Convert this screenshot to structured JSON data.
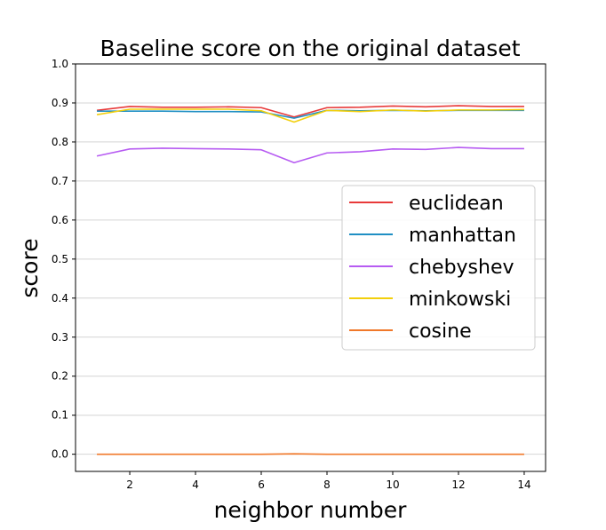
{
  "chart_data": {
    "type": "line",
    "title": "Baseline score on the original dataset",
    "xlabel": "neighbor number",
    "ylabel": "score",
    "xlim": [
      0.35,
      14.65
    ],
    "ylim": [
      -0.044,
      1.0
    ],
    "x_ticks": [
      2,
      4,
      6,
      8,
      10,
      12,
      14
    ],
    "x_tick_labels": [
      "2",
      "4",
      "6",
      "8",
      "10",
      "12",
      "14"
    ],
    "y_ticks": [
      0.0,
      0.1,
      0.2,
      0.3,
      0.4,
      0.5,
      0.6,
      0.7,
      0.8,
      0.9,
      1.0
    ],
    "y_tick_labels": [
      "0.0",
      "0.1",
      "0.2",
      "0.3",
      "0.4",
      "0.5",
      "0.6",
      "0.7",
      "0.8",
      "0.9",
      "1.0"
    ],
    "grid": "horizontal",
    "legend_position": "center-right",
    "x": [
      1,
      2,
      3,
      4,
      5,
      6,
      7,
      8,
      9,
      10,
      11,
      12,
      13,
      14
    ],
    "series": [
      {
        "name": "euclidean",
        "color": "#e83a3a",
        "values": [
          0.881,
          0.891,
          0.889,
          0.889,
          0.89,
          0.888,
          0.864,
          0.888,
          0.889,
          0.892,
          0.89,
          0.893,
          0.891,
          0.891
        ]
      },
      {
        "name": "manhattan",
        "color": "#1f8fc4",
        "values": [
          0.879,
          0.879,
          0.879,
          0.878,
          0.878,
          0.877,
          0.861,
          0.881,
          0.88,
          0.881,
          0.88,
          0.881,
          0.881,
          0.881
        ]
      },
      {
        "name": "chebyshev",
        "color": "#b75cf2",
        "values": [
          0.764,
          0.782,
          0.784,
          0.783,
          0.782,
          0.78,
          0.747,
          0.772,
          0.775,
          0.782,
          0.781,
          0.786,
          0.783,
          0.783
        ]
      },
      {
        "name": "minkowski",
        "color": "#f2cf0c",
        "values": [
          0.87,
          0.884,
          0.884,
          0.884,
          0.884,
          0.88,
          0.851,
          0.881,
          0.878,
          0.882,
          0.879,
          0.882,
          0.882,
          0.883
        ]
      },
      {
        "name": "cosine",
        "color": "#f0782a",
        "values": [
          0.0,
          0.0,
          0.0,
          0.0,
          0.0,
          0.0,
          0.001,
          0.0,
          0.0,
          0.0,
          0.0,
          0.0,
          0.0,
          0.0
        ]
      }
    ]
  }
}
